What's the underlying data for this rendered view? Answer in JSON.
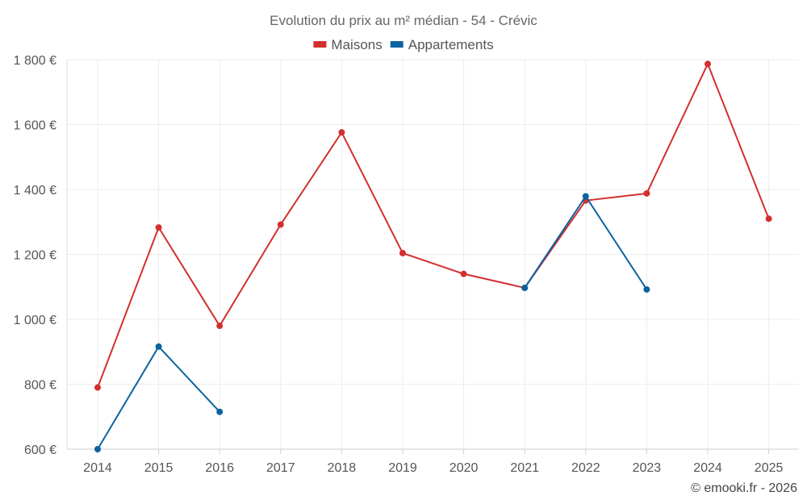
{
  "chart_data": {
    "type": "line",
    "title": "Evolution du prix au m² médian - 54 - Crévic",
    "x": [
      "2014",
      "2015",
      "2016",
      "2017",
      "2018",
      "2019",
      "2020",
      "2021",
      "2022",
      "2023",
      "2024",
      "2025"
    ],
    "series": [
      {
        "name": "Maisons",
        "color": "#d32f2f",
        "values": [
          790,
          1283,
          980,
          1292,
          1576,
          1204,
          1140,
          1097,
          1366,
          1388,
          1787,
          1310
        ]
      },
      {
        "name": "Appartements",
        "color": "#0b64a0",
        "values": [
          600,
          916,
          715,
          null,
          null,
          null,
          null,
          1097,
          1379,
          1092,
          null,
          null
        ]
      }
    ],
    "ylim": [
      600,
      1800
    ],
    "yticks": [
      600,
      800,
      1000,
      1200,
      1400,
      1600,
      1800
    ],
    "ytick_labels": [
      "600 €",
      "800 €",
      "1 000 €",
      "1 200 €",
      "1 400 €",
      "1 600 €",
      "1 800 €"
    ],
    "xlabel": "",
    "ylabel": "",
    "grid": true,
    "legend": "top-center"
  },
  "credit": "© emooki.fr - 2026"
}
